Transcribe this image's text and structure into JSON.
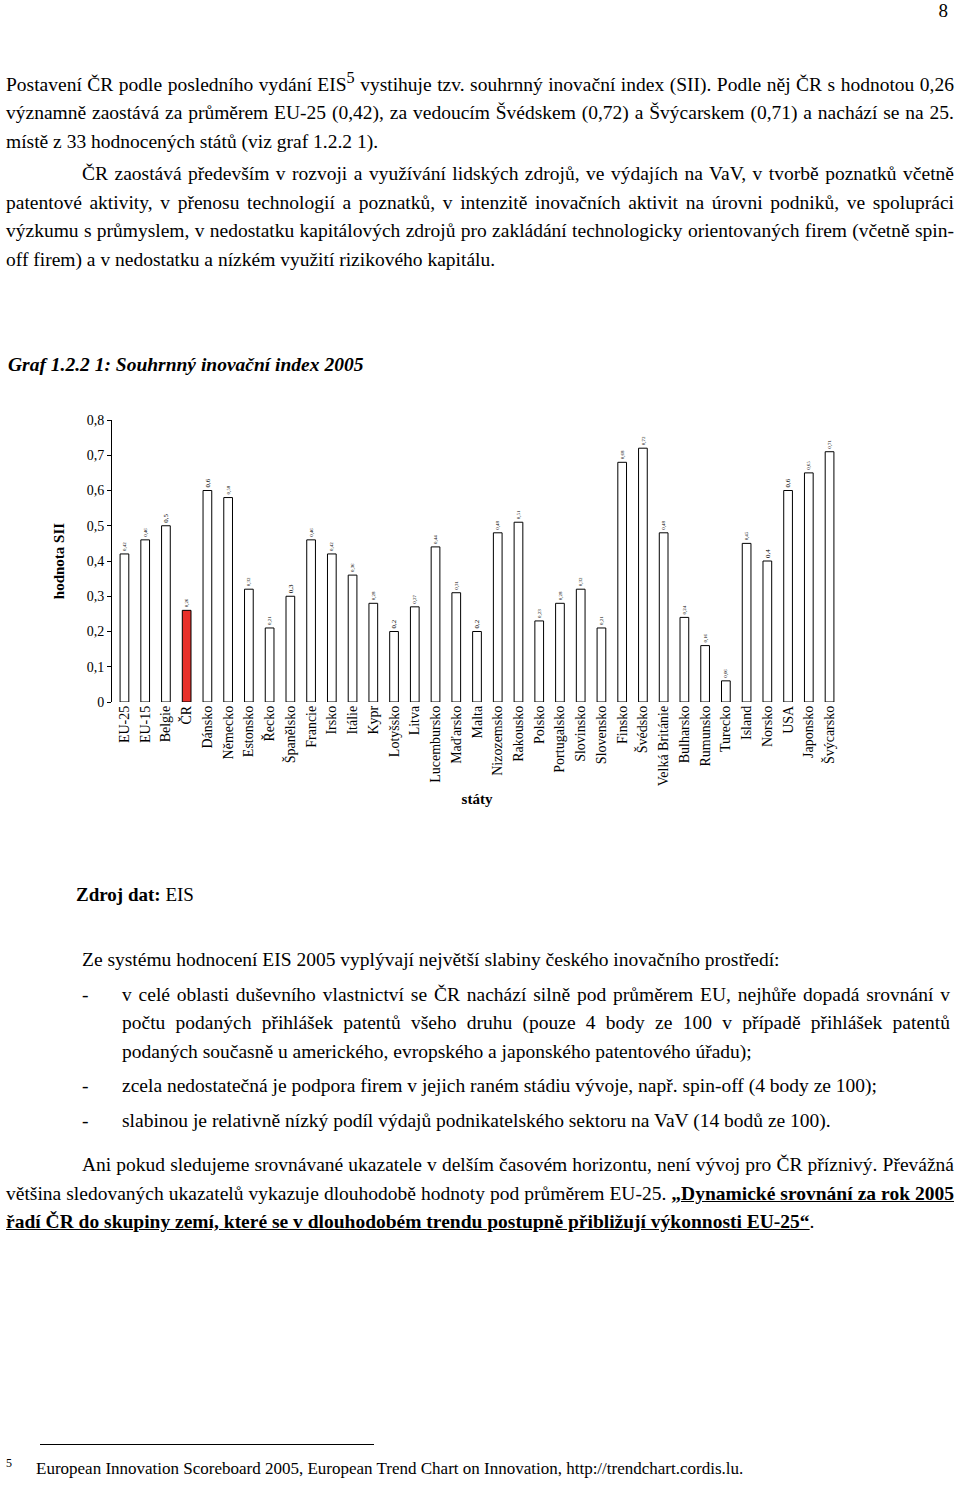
{
  "page": {
    "page_number": "8",
    "intro": {
      "before": "Postavení ČR podle posledního vydání EIS",
      "sup": "5",
      "after": " vystihuje tzv. souhrnný inovační index (SII). Podle něj ČR s hodnotou 0,26 významně zaostává za průměrem EU-25 (0,42), za vedoucím Švédskem (0,72) a Švýcarskem (0,71) a nachází se na 25. místě z 33 hodnocených států (viz graf 1.2.2 1)."
    },
    "weaknesses": "ČR zaostává především v rozvoji a využívání lidských zdrojů, ve výdajích na VaV, v tvorbě poznatků včetně patentové aktivity, v přenosu technologií a poznatků, v intenzitě inovačních aktivit na úrovni podniků, ve spolupráci výzkumu s průmyslem, v nedostatku kapitálových zdrojů pro zakládání technologicky orientovaných firem (včetně spin-off firem) a v nedostatku a nízkém využití rizikového kapitálu.",
    "source": {
      "label": "Zdroj dat:",
      "text": " EIS"
    },
    "summary": "Ze systému hodnocení EIS 2005 vyplývají největší slabiny českého inovačního prostředí:",
    "bullet": "-",
    "bullets": [
      "v celé oblasti duševního vlastnictví se ČR nachází silně pod průměrem EU, nejhůře dopadá srovnání v počtu podaných přihlášek patentů všeho druhu (pouze 4 body ze 100 v případě přihlášek patentů podaných současně u amerického, evropského a japonského patentového úřadu);",
      "zcela nedostatečná je podpora firem v jejich raném stádiu vývoje, např. spin-off (4 body ze 100);",
      "slabinou je relativně nízký podíl výdajů podnikatelského sektoru na VaV (14 bodů ze 100)."
    ],
    "conclusion": {
      "text": "Ani pokud sledujeme srovnávané ukazatele v delším časovém horizontu, není vývoj pro ČR příznivý. Převážná většina sledovaných ukazatelů vykazuje dlouhodobě hodnoty pod průměrem EU-25. ",
      "bold": "„Dynamické srovnání za rok 2005 řadí ČR do skupiny zemí, které se v dlouhodobém trendu postupně přibližují výkonnosti EU-25“",
      "after": "."
    },
    "footnote": {
      "mark": "5",
      "text": "European Innovation Scoreboard 2005, European Trend Chart on Innovation, http://trendchart.cordis.lu."
    }
  },
  "chart_data": {
    "type": "bar",
    "title": "Graf 1.2.2 1: Souhrnný inovační index 2005",
    "x_label": "státy",
    "y_label": "hodnota SII",
    "categories": [
      "EU-25",
      "EU-15",
      "Belgie",
      "ČR",
      "Dánsko",
      "Německo",
      "Estonsko",
      "Řecko",
      "Španělsko",
      "Francie",
      "Irsko",
      "Itálie",
      "Kypr",
      "Lotyšsko",
      "Litva",
      "Lucembursko",
      "Maďarsko",
      "Malta",
      "Nizozemsko",
      "Rakousko",
      "Polsko",
      "Portugalsko",
      "Slovinsko",
      "Slovensko",
      "Finsko",
      "Švédsko",
      "Velká Británie",
      "Bulharsko",
      "Rumunsko",
      "Turecko",
      "Island",
      "Norsko",
      "USA",
      "Japonsko",
      "Švýcarsko"
    ],
    "values": [
      0.42,
      0.46,
      0.5,
      0.26,
      0.6,
      0.58,
      0.32,
      0.21,
      0.3,
      0.46,
      0.42,
      0.36,
      0.28,
      0.2,
      0.27,
      0.44,
      0.31,
      0.2,
      0.48,
      0.51,
      0.23,
      0.28,
      0.32,
      0.21,
      0.68,
      0.72,
      0.48,
      0.24,
      0.16,
      0.06,
      0.45,
      0.4,
      0.6,
      0.65,
      0.71
    ],
    "value_labels": [
      "0,42",
      "0,46",
      "0,5",
      "0,26",
      "0,6",
      "0,58",
      "0,32",
      "0,21",
      "0,3",
      "0,46",
      "0,42",
      "0,36",
      "0,28",
      "0,2",
      "0,27",
      "0,44",
      "0,31",
      "0,2",
      "0,48",
      "0,51",
      "0,23",
      "0,28",
      "0,32",
      "0,21",
      "0,68",
      "0,72",
      "0,48",
      "0,24",
      "0,16",
      "0,06",
      "0,45",
      "0,4",
      "0,6",
      "0,65",
      "0,71"
    ],
    "colors": [
      "#ffffff",
      "#ffffff",
      "#ffffff",
      "#e8302a",
      "#ffffff",
      "#ffffff",
      "#ffffff",
      "#ffffff",
      "#ffffff",
      "#ffffff",
      "#ffffff",
      "#ffffff",
      "#ffffff",
      "#ffffff",
      "#ffffff",
      "#ffffff",
      "#ffffff",
      "#ffffff",
      "#ffffff",
      "#ffffff",
      "#ffffff",
      "#ffffff",
      "#ffffff",
      "#ffffff",
      "#ffffff",
      "#ffffff",
      "#ffffff",
      "#ffffff",
      "#ffffff",
      "#ffffff",
      "#ffffff",
      "#ffffff",
      "#ffffff",
      "#ffffff",
      "#ffffff"
    ],
    "data_labels": true,
    "grid": false,
    "ylim": [
      0,
      0.8
    ],
    "yticks": [
      0,
      {
        "value": 0.1,
        "label": "0,1"
      },
      {
        "value": 0.2,
        "label": "0,2"
      },
      {
        "value": 0.3,
        "label": "0,3"
      },
      {
        "value": 0.4,
        "label": "0,4"
      },
      {
        "value": 0.5,
        "label": "0,5"
      },
      {
        "value": 0.6,
        "label": "0,6"
      },
      {
        "value": 0.7,
        "label": "0,7"
      },
      {
        "value": 0.8,
        "label": "0,8"
      }
    ]
  }
}
